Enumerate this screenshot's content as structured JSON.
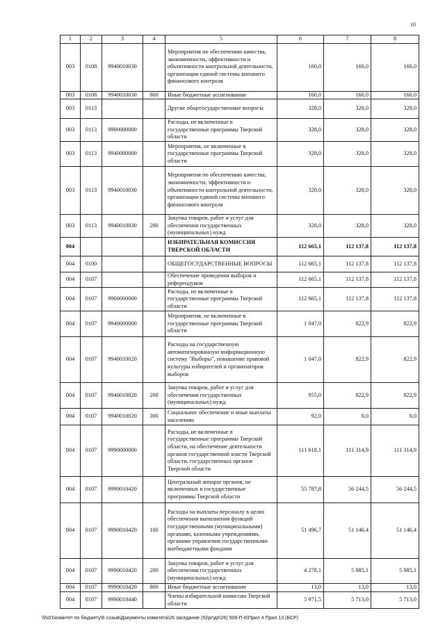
{
  "page_number": "10",
  "table": {
    "header": [
      "1",
      "2",
      "3",
      "4",
      "5",
      "6",
      "7",
      "8"
    ],
    "rows": [
      [
        "003",
        "0108",
        "9940010030",
        "",
        "Мероприятия по обеспечению качества, экономичности, эффективности и объективности контрольной деятельности, организации единой системы внешнего финансового контроля",
        "160,0",
        "160,0",
        "160,0"
      ],
      [
        "003",
        "0108",
        "9940010030",
        "800",
        "Иные бюджетные ассигнования",
        "160,0",
        "160,0",
        "160,0"
      ],
      [
        "003",
        "0113",
        "",
        "",
        "Другие общегосударственные вопросы",
        "328,0",
        "328,0",
        "328,0"
      ],
      [
        "003",
        "0113",
        "9900000000",
        "",
        "Расходы, не включенные в государственные программы Тверской области",
        "328,0",
        "328,0",
        "328,0"
      ],
      [
        "003",
        "0113",
        "9940000000",
        "",
        "Мероприятия, не включенные в государственные программы Тверской области",
        "328,0",
        "328,0",
        "328,0"
      ],
      [
        "003",
        "0113",
        "9940010030",
        "",
        "Мероприятия по обеспечению качества, экономичности, эффективности и объективности контрольной деятельности, организации единой системы внешнего финансового контроля",
        "328,0",
        "328,0",
        "328,0"
      ],
      [
        "003",
        "0113",
        "9940010030",
        "200",
        "Закупка товаров, работ и услуг для обеспечения государственных (муниципальных) нужд",
        "328,0",
        "328,0",
        "328,0"
      ],
      [
        "004",
        "",
        "",
        "",
        "ИЗБИРАТЕЛЬНАЯ КОМИССИЯ ТВЕРСКОЙ ОБЛАСТИ",
        "112 665,1",
        "112 137,8",
        "112 137,8"
      ],
      [
        "004",
        "0100",
        "",
        "",
        "ОБЩЕГОСУДАРСТВЕННЫЕ ВОПРОСЫ",
        "112 665,1",
        "112 137,8",
        "112 137,8"
      ],
      [
        "004",
        "0107",
        "",
        "",
        "Обеспечение проведения выборов и референдумов",
        "112 665,1",
        "112 137,8",
        "112 137,8"
      ],
      [
        "004",
        "0107",
        "9900000000",
        "",
        "Расходы, не включенные в государственные программы Тверской области",
        "112 665,1",
        "112 137,8",
        "112 137,8"
      ],
      [
        "004",
        "0107",
        "9940000000",
        "",
        "Мероприятия, не включенные в государственные программы Тверской области",
        "1 047,0",
        "822,9",
        "822,9"
      ],
      [
        "004",
        "0107",
        "9940010020",
        "",
        "Расходы на государственную автоматизированную информационную систему \"Выборы\", повышение правовой культуры избирателей и организаторов выборов",
        "1 047,0",
        "822,9",
        "822,9"
      ],
      [
        "004",
        "0107",
        "9940010020",
        "200",
        "Закупка товаров, работ и услуг для обеспечения государственных (муниципальных) нужд",
        "955,0",
        "822,9",
        "822,9"
      ],
      [
        "004",
        "0107",
        "9940010020",
        "300",
        "Социальное обеспечение и иные выплаты населению",
        "92,0",
        "0,0",
        "0,0"
      ],
      [
        "004",
        "0107",
        "9990000000",
        "",
        "Расходы, не включенные в государственные программы Тверской области, на обеспечение деятельности органов государственной власти Тверской области, государственных органов Тверской области",
        "111 618,1",
        "111 314,9",
        "111 314,9"
      ],
      [
        "004",
        "0107",
        "9990010420",
        "",
        "Центральный аппарат органов, не включенных в государственные программы Тверской области",
        "55 787,8",
        "56 244,5",
        "56 244,5"
      ],
      [
        "004",
        "0107",
        "9990010420",
        "100",
        "Расходы на выплаты персоналу в целях обеспечения выполнения функций государственными (муниципальными) органами, казенными учреждениями, органами управления государственными внебюджетными фондами",
        "51 496,7",
        "51 146,4",
        "51 146,4"
      ],
      [
        "004",
        "0107",
        "9990010420",
        "200",
        "Закупка товаров, работ и услуг для обеспечения государственных (муниципальных) нужд",
        "4 278,1",
        "5 085,1",
        "5 085,1"
      ],
      [
        "004",
        "0107",
        "9990010420",
        "800",
        "Иные бюджетные ассигнования",
        "13,0",
        "13,0",
        "13,0"
      ],
      [
        "004",
        "0107",
        "9990010440",
        "",
        "Члены избирательной комиссии Тверской области",
        "5 971,5",
        "5 713,0",
        "5 713,0"
      ]
    ]
  },
  "footer": "\\\\fs01\\комитет по бюджету\\6 созыв\\Документы комитета\\26 заседание (5)\\pr\\дп\\26) 508-П-6\\Прил 4 Прил 13 (БСР)"
}
